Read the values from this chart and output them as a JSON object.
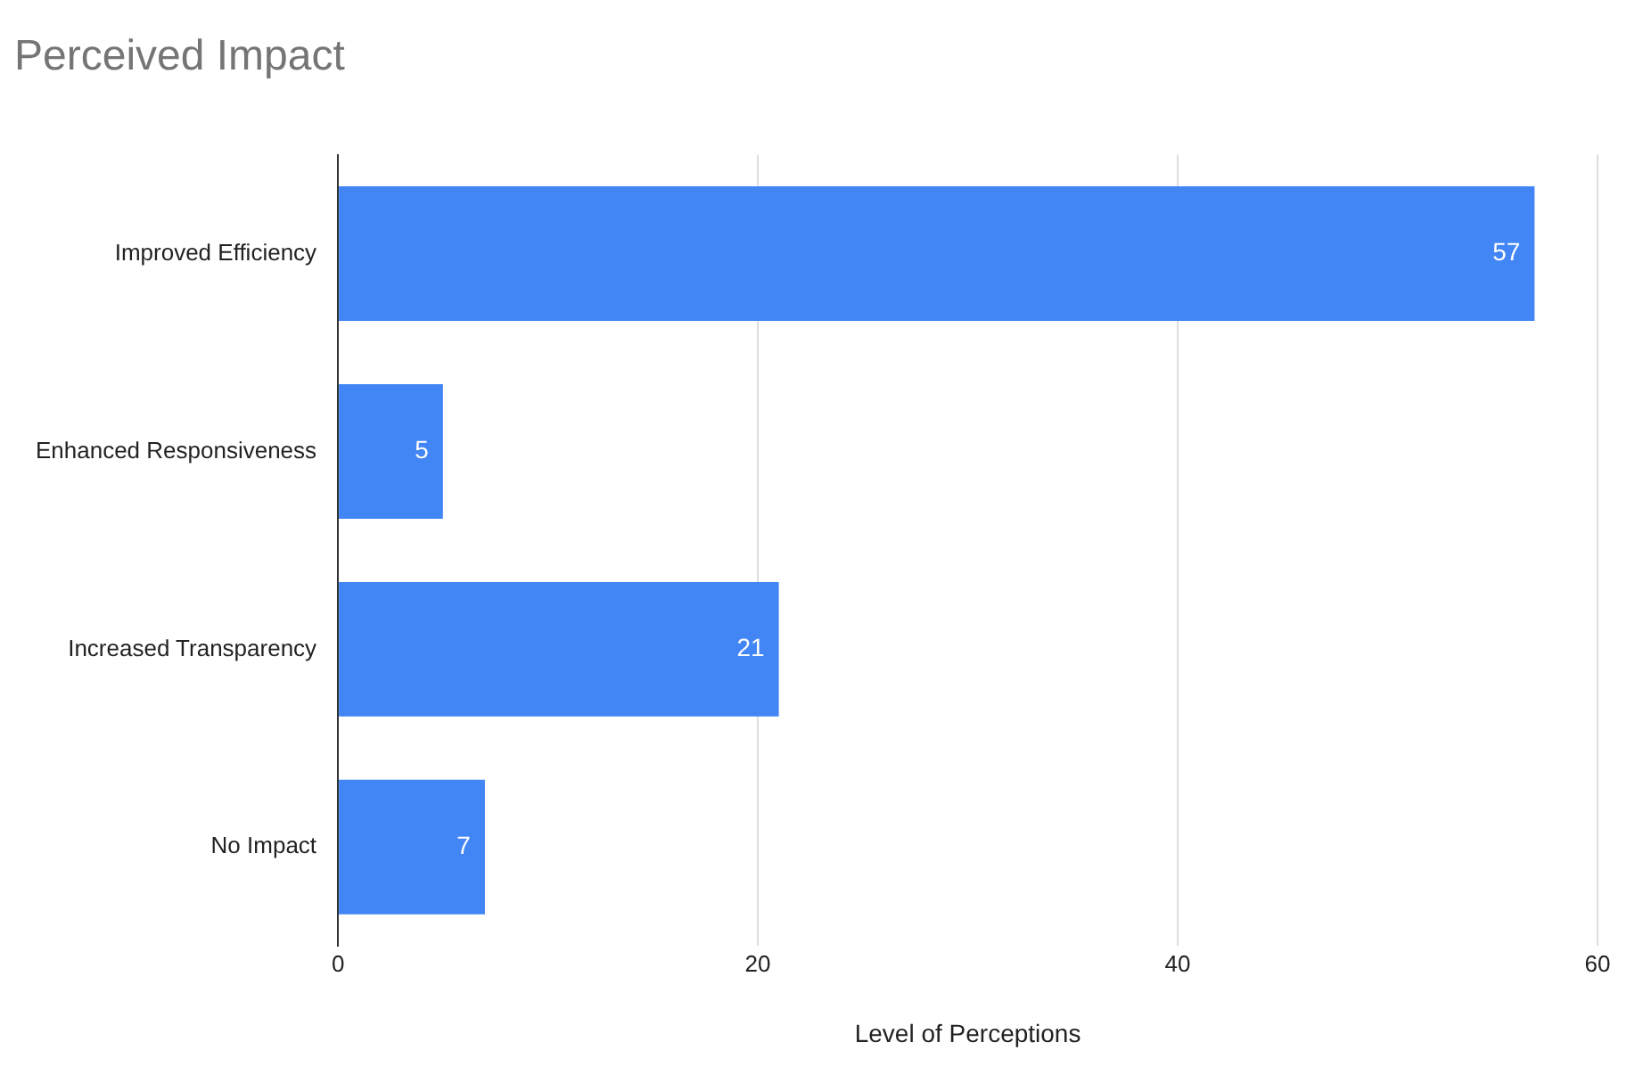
{
  "chart_data": {
    "type": "bar",
    "orientation": "horizontal",
    "title": "Perceived Impact",
    "xlabel": "Level of Perceptions",
    "categories": [
      "Improved Efficiency",
      "Enhanced Responsiveness",
      "Increased Transparency",
      "No Impact"
    ],
    "values": [
      57,
      5,
      21,
      7
    ],
    "color": "#4285f4",
    "xlim": [
      0,
      60
    ],
    "xticks": [
      0,
      20,
      40,
      60
    ],
    "grid": "x",
    "data_labels": true
  }
}
